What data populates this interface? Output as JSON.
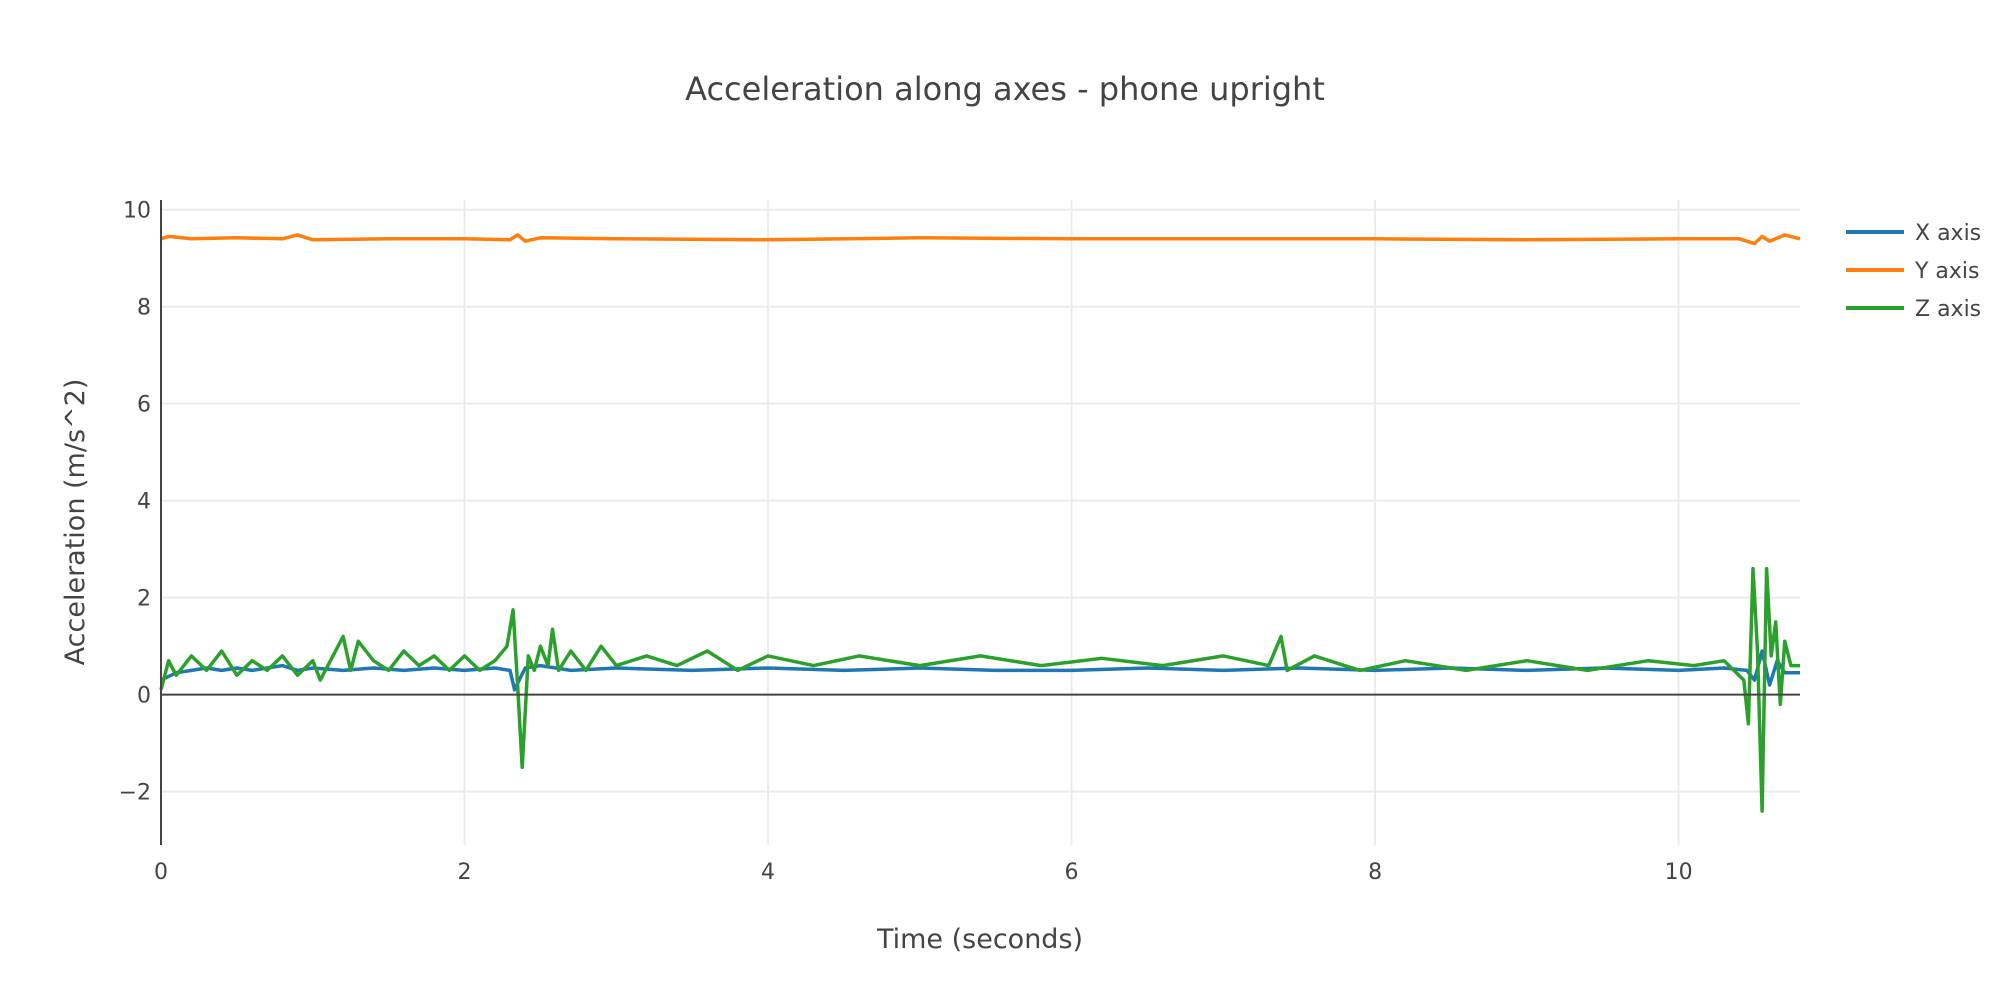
{
  "chart_data": {
    "type": "line",
    "title": "Acceleration along axes - phone upright",
    "xlabel": "Time (seconds)",
    "ylabel": "Acceleration (m/s^2)",
    "xlim": [
      0,
      10.8
    ],
    "ylim": [
      -3.1,
      10.2
    ],
    "xticks": [
      0,
      2,
      4,
      6,
      8,
      10
    ],
    "yticks": [
      -2,
      0,
      2,
      4,
      6,
      8,
      10
    ],
    "xtick_labels": [
      "0",
      "2",
      "4",
      "6",
      "8",
      "10"
    ],
    "ytick_labels": [
      "−2",
      "0",
      "2",
      "4",
      "6",
      "8",
      "10"
    ],
    "grid": true,
    "legend_position": "top-right",
    "series": [
      {
        "name": "X axis",
        "color": "#1f77b4",
        "x": [
          0,
          0.1,
          0.2,
          0.3,
          0.4,
          0.5,
          0.6,
          0.7,
          0.8,
          0.9,
          1.0,
          1.2,
          1.4,
          1.6,
          1.8,
          2.0,
          2.2,
          2.3,
          2.33,
          2.36,
          2.4,
          2.5,
          2.7,
          3.0,
          3.5,
          4.0,
          4.5,
          5.0,
          5.5,
          6.0,
          6.5,
          7.0,
          7.5,
          8.0,
          8.5,
          9.0,
          9.5,
          10.0,
          10.3,
          10.45,
          10.5,
          10.55,
          10.6,
          10.65,
          10.7,
          10.8
        ],
        "y": [
          0.3,
          0.45,
          0.5,
          0.55,
          0.5,
          0.55,
          0.5,
          0.55,
          0.6,
          0.5,
          0.55,
          0.5,
          0.55,
          0.5,
          0.55,
          0.5,
          0.55,
          0.5,
          0.1,
          0.3,
          0.55,
          0.6,
          0.5,
          0.55,
          0.5,
          0.55,
          0.5,
          0.55,
          0.5,
          0.5,
          0.55,
          0.5,
          0.55,
          0.5,
          0.55,
          0.5,
          0.55,
          0.5,
          0.55,
          0.5,
          0.3,
          0.9,
          0.2,
          0.7,
          0.45,
          0.45
        ]
      },
      {
        "name": "Y axis",
        "color": "#ff7f0e",
        "x": [
          0,
          0.05,
          0.2,
          0.5,
          0.8,
          0.9,
          1.0,
          1.5,
          2.0,
          2.3,
          2.35,
          2.4,
          2.5,
          3.0,
          4.0,
          5.0,
          6.0,
          7.0,
          8.0,
          9.0,
          10.0,
          10.4,
          10.5,
          10.55,
          10.6,
          10.7,
          10.8
        ],
        "y": [
          9.4,
          9.45,
          9.4,
          9.42,
          9.4,
          9.48,
          9.38,
          9.4,
          9.4,
          9.38,
          9.48,
          9.35,
          9.42,
          9.4,
          9.38,
          9.42,
          9.4,
          9.4,
          9.4,
          9.38,
          9.4,
          9.4,
          9.3,
          9.45,
          9.35,
          9.48,
          9.4
        ]
      },
      {
        "name": "Z axis",
        "color": "#2ca02c",
        "x": [
          0,
          0.05,
          0.1,
          0.2,
          0.3,
          0.4,
          0.5,
          0.6,
          0.7,
          0.8,
          0.9,
          1.0,
          1.05,
          1.1,
          1.2,
          1.25,
          1.3,
          1.4,
          1.5,
          1.6,
          1.7,
          1.8,
          1.9,
          2.0,
          2.1,
          2.2,
          2.28,
          2.32,
          2.35,
          2.38,
          2.42,
          2.46,
          2.5,
          2.55,
          2.58,
          2.62,
          2.7,
          2.8,
          2.9,
          3.0,
          3.2,
          3.4,
          3.6,
          3.8,
          4.0,
          4.3,
          4.6,
          5.0,
          5.4,
          5.8,
          6.2,
          6.6,
          7.0,
          7.3,
          7.38,
          7.42,
          7.6,
          7.9,
          8.2,
          8.6,
          9.0,
          9.4,
          9.8,
          10.1,
          10.3,
          10.43,
          10.46,
          10.49,
          10.52,
          10.55,
          10.58,
          10.61,
          10.64,
          10.67,
          10.7,
          10.74,
          10.8
        ],
        "y": [
          0.1,
          0.7,
          0.4,
          0.8,
          0.5,
          0.9,
          0.4,
          0.7,
          0.5,
          0.8,
          0.4,
          0.7,
          0.3,
          0.6,
          1.2,
          0.5,
          1.1,
          0.7,
          0.5,
          0.9,
          0.6,
          0.8,
          0.5,
          0.8,
          0.5,
          0.7,
          1.0,
          1.75,
          0.2,
          -1.5,
          0.8,
          0.5,
          1.0,
          0.6,
          1.35,
          0.5,
          0.9,
          0.5,
          1.0,
          0.6,
          0.8,
          0.6,
          0.9,
          0.5,
          0.8,
          0.6,
          0.8,
          0.6,
          0.8,
          0.6,
          0.75,
          0.6,
          0.8,
          0.6,
          1.2,
          0.5,
          0.8,
          0.5,
          0.7,
          0.5,
          0.7,
          0.5,
          0.7,
          0.6,
          0.7,
          0.3,
          -0.6,
          2.6,
          0.9,
          -2.4,
          2.6,
          0.8,
          1.5,
          -0.2,
          1.1,
          0.6,
          0.6
        ]
      }
    ]
  }
}
